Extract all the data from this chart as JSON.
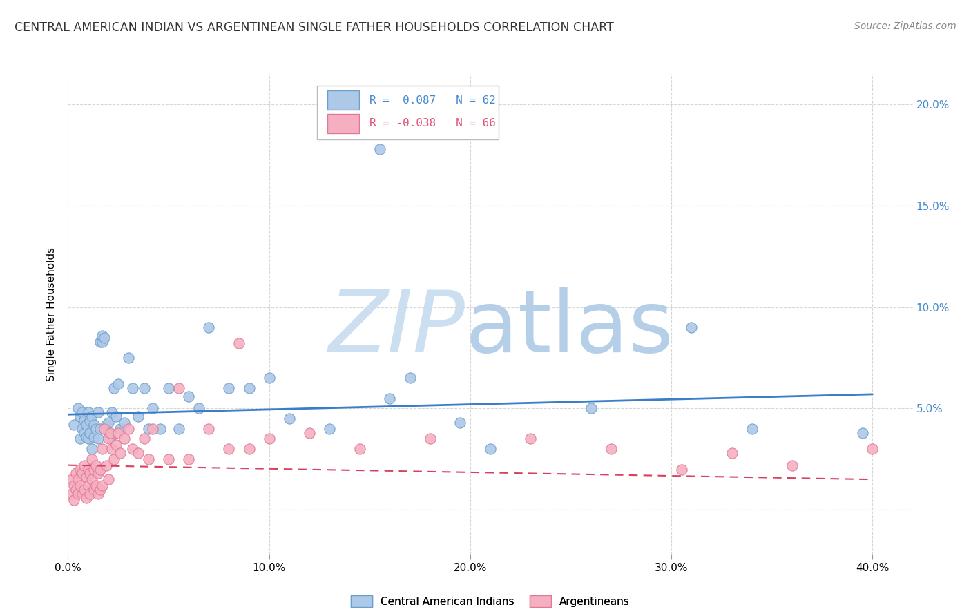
{
  "title": "CENTRAL AMERICAN INDIAN VS ARGENTINEAN SINGLE FATHER HOUSEHOLDS CORRELATION CHART",
  "source": "Source: ZipAtlas.com",
  "ylabel": "Single Father Households",
  "xlim": [
    0.0,
    0.42
  ],
  "ylim": [
    -0.022,
    0.215
  ],
  "xticks": [
    0.0,
    0.1,
    0.2,
    0.3,
    0.4
  ],
  "xtick_labels": [
    "0.0%",
    "10.0%",
    "20.0%",
    "30.0%",
    "40.0%"
  ],
  "yticks": [
    0.0,
    0.05,
    0.1,
    0.15,
    0.2
  ],
  "ytick_labels": [
    "",
    "5.0%",
    "10.0%",
    "15.0%",
    "20.0%"
  ],
  "legend1_text_r": "R =  0.087",
  "legend1_text_n": "N = 62",
  "legend2_text_r": "R = -0.038",
  "legend2_text_n": "N = 66",
  "legend_label_blue": "Central American Indians",
  "legend_label_pink": "Argentineans",
  "blue_color": "#aec8e8",
  "blue_edge": "#6aa0cc",
  "pink_color": "#f5afc0",
  "pink_edge": "#e07898",
  "trend_blue": "#3a7dc9",
  "trend_pink": "#d94060",
  "watermark_zip": "ZIP",
  "watermark_atlas": "atlas",
  "watermark_color_zip": "#c8dff0",
  "watermark_color_atlas": "#b8d4e8",
  "background_color": "#ffffff",
  "grid_color": "#cccccc",
  "blue_x": [
    0.003,
    0.005,
    0.006,
    0.006,
    0.007,
    0.007,
    0.008,
    0.008,
    0.009,
    0.009,
    0.01,
    0.01,
    0.011,
    0.011,
    0.012,
    0.012,
    0.013,
    0.013,
    0.014,
    0.015,
    0.015,
    0.016,
    0.016,
    0.017,
    0.017,
    0.018,
    0.019,
    0.02,
    0.02,
    0.021,
    0.022,
    0.023,
    0.024,
    0.025,
    0.026,
    0.028,
    0.03,
    0.032,
    0.035,
    0.038,
    0.04,
    0.042,
    0.046,
    0.05,
    0.055,
    0.06,
    0.065,
    0.07,
    0.08,
    0.09,
    0.1,
    0.11,
    0.13,
    0.155,
    0.16,
    0.17,
    0.195,
    0.21,
    0.26,
    0.31,
    0.34,
    0.395
  ],
  "blue_y": [
    0.042,
    0.05,
    0.035,
    0.046,
    0.04,
    0.048,
    0.038,
    0.044,
    0.036,
    0.042,
    0.035,
    0.048,
    0.038,
    0.044,
    0.03,
    0.046,
    0.042,
    0.036,
    0.04,
    0.048,
    0.035,
    0.04,
    0.083,
    0.083,
    0.086,
    0.085,
    0.042,
    0.038,
    0.043,
    0.036,
    0.048,
    0.06,
    0.046,
    0.062,
    0.04,
    0.043,
    0.075,
    0.06,
    0.046,
    0.06,
    0.04,
    0.05,
    0.04,
    0.06,
    0.04,
    0.056,
    0.05,
    0.09,
    0.06,
    0.06,
    0.065,
    0.045,
    0.04,
    0.178,
    0.055,
    0.065,
    0.043,
    0.03,
    0.05,
    0.09,
    0.04,
    0.038
  ],
  "pink_x": [
    0.002,
    0.002,
    0.003,
    0.003,
    0.004,
    0.004,
    0.005,
    0.005,
    0.006,
    0.006,
    0.007,
    0.007,
    0.008,
    0.008,
    0.009,
    0.009,
    0.01,
    0.01,
    0.011,
    0.011,
    0.012,
    0.012,
    0.013,
    0.013,
    0.014,
    0.014,
    0.015,
    0.015,
    0.016,
    0.016,
    0.017,
    0.017,
    0.018,
    0.019,
    0.02,
    0.02,
    0.021,
    0.022,
    0.023,
    0.024,
    0.025,
    0.026,
    0.028,
    0.03,
    0.032,
    0.035,
    0.038,
    0.04,
    0.042,
    0.05,
    0.055,
    0.06,
    0.07,
    0.08,
    0.085,
    0.09,
    0.1,
    0.12,
    0.145,
    0.18,
    0.23,
    0.27,
    0.305,
    0.33,
    0.36,
    0.4
  ],
  "pink_y": [
    0.015,
    0.008,
    0.012,
    0.005,
    0.018,
    0.01,
    0.015,
    0.008,
    0.02,
    0.012,
    0.018,
    0.008,
    0.022,
    0.01,
    0.016,
    0.006,
    0.02,
    0.012,
    0.018,
    0.008,
    0.025,
    0.015,
    0.02,
    0.01,
    0.022,
    0.012,
    0.018,
    0.008,
    0.02,
    0.01,
    0.03,
    0.012,
    0.04,
    0.022,
    0.035,
    0.015,
    0.038,
    0.03,
    0.025,
    0.032,
    0.038,
    0.028,
    0.035,
    0.04,
    0.03,
    0.028,
    0.035,
    0.025,
    0.04,
    0.025,
    0.06,
    0.025,
    0.04,
    0.03,
    0.082,
    0.03,
    0.035,
    0.038,
    0.03,
    0.035,
    0.035,
    0.03,
    0.02,
    0.028,
    0.022,
    0.03
  ],
  "trend_blue_x0": 0.0,
  "trend_blue_x1": 0.4,
  "trend_blue_y0": 0.047,
  "trend_blue_y1": 0.057,
  "trend_pink_x0": 0.0,
  "trend_pink_x1": 0.4,
  "trend_pink_y0": 0.022,
  "trend_pink_y1": 0.015
}
